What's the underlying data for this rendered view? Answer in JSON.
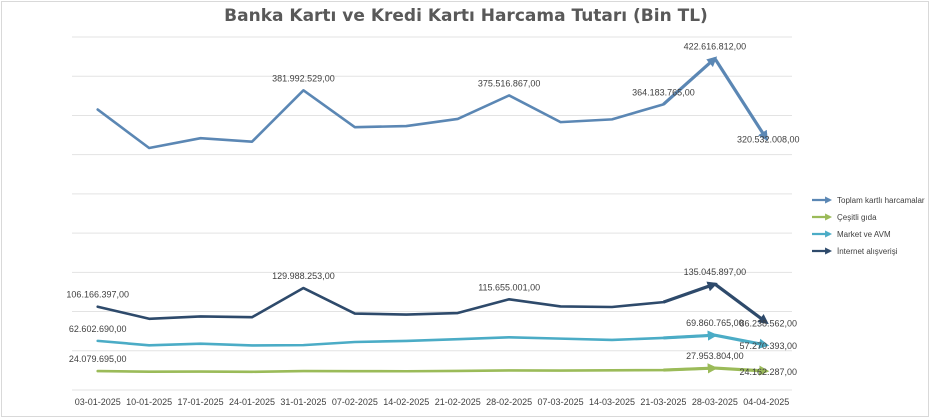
{
  "chart_data": {
    "type": "line",
    "title": "Banka Kartı ve Kredi Kartı Harcama Tutarı (Bin TL)",
    "xlabel": "",
    "ylabel": "",
    "ylim": [
      0,
      450000000
    ],
    "grid": true,
    "legend_position": "right",
    "categories": [
      "03-01-2025",
      "10-01-2025",
      "17-01-2025",
      "24-01-2025",
      "31-01-2025",
      "07-02-2025",
      "14-02-2025",
      "21-02-2025",
      "28-02-2025",
      "07-03-2025",
      "14-03-2025",
      "21-03-2025",
      "28-03-2025",
      "04-04-2025"
    ],
    "series": [
      {
        "name": "Toplam kartlı harcamalar",
        "color": "#5b87b4",
        "values": [
          357500000,
          308500000,
          321000000,
          316500000,
          381992529,
          335000000,
          336500000,
          345500000,
          375516867,
          341500000,
          345000000,
          364183765,
          422616812,
          320532008
        ],
        "labels": [
          null,
          null,
          null,
          null,
          "381.992.529,00",
          null,
          null,
          null,
          "375.516.867,00",
          null,
          null,
          "364.183.765,00",
          "422.616.812,00",
          "320.532.008,00"
        ]
      },
      {
        "name": "Çeşitli gıda",
        "color": "#9bbb59",
        "values": [
          24079695,
          23300000,
          23500000,
          23200000,
          24100000,
          24000000,
          23900000,
          24300000,
          25000000,
          24800000,
          25100000,
          25400000,
          27953804,
          24162287
        ],
        "labels": [
          "24.079.695,00",
          null,
          null,
          null,
          null,
          null,
          null,
          null,
          null,
          null,
          null,
          null,
          "27.953.804,00",
          "24.162.287,00"
        ]
      },
      {
        "name": "Market ve AVM",
        "color": "#4bacc6",
        "values": [
          62602690,
          57000000,
          59000000,
          56800000,
          57200000,
          61200000,
          62600000,
          64800000,
          67200000,
          65500000,
          63800000,
          66400000,
          69860765,
          57270393
        ],
        "labels": [
          "62.602.690,00",
          null,
          null,
          null,
          null,
          null,
          null,
          null,
          null,
          null,
          null,
          null,
          "69.860.765,00",
          "57.270.393,00"
        ]
      },
      {
        "name": "İnternet alışverişi",
        "color": "#2e4a6b",
        "values": [
          106166397,
          90800000,
          93800000,
          92800000,
          129988253,
          97400000,
          96200000,
          98100000,
          115655001,
          106500000,
          105800000,
          112000000,
          135045897,
          86238562
        ],
        "labels": [
          "106.166.397,00",
          null,
          null,
          null,
          "129.988.253,00",
          null,
          null,
          null,
          "115.655.001,00",
          null,
          null,
          null,
          "135.045.897,00",
          "86.238.562,00"
        ]
      }
    ]
  }
}
